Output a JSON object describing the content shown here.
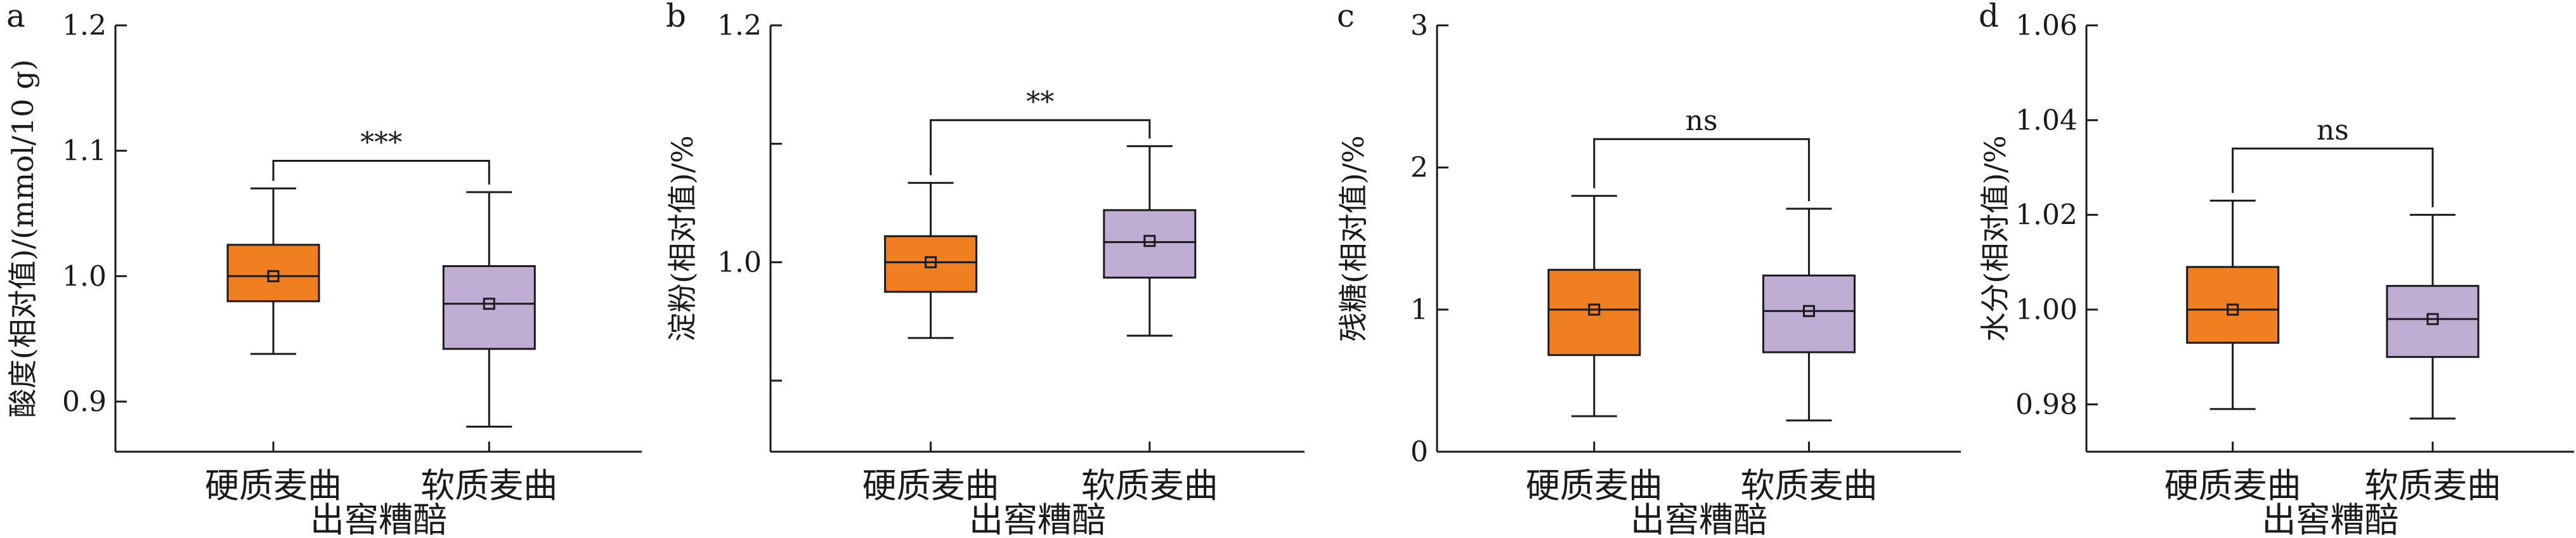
{
  "colors": {
    "hard": "#F07F22",
    "soft": "#BFADD4",
    "line": "#1a1a1a"
  },
  "chart_data": [
    {
      "type": "box",
      "panel": "a",
      "ylabel": "酸度(相对值)/(mmol/10 g)",
      "xlabel": "出窖糟醅",
      "categories": [
        "硬质麦曲",
        "软质麦曲"
      ],
      "ylim": [
        0.86,
        1.2
      ],
      "yticks": [
        0.9,
        1.0,
        1.1,
        1.2
      ],
      "ytick_labels": [
        "0.9",
        "1.0",
        "1.1",
        "1.2"
      ],
      "boxes": [
        {
          "min": 0.938,
          "q1": 0.98,
          "median": 1.0,
          "q3": 1.025,
          "max": 1.07,
          "mean": 1.0
        },
        {
          "min": 0.88,
          "q1": 0.942,
          "median": 0.978,
          "q3": 1.008,
          "max": 1.067,
          "mean": 0.978
        }
      ],
      "significance": {
        "label": "***",
        "y": 1.092
      }
    },
    {
      "type": "box",
      "panel": "b",
      "ylabel": "淀粉(相对值)/%",
      "xlabel": "出窖糟醅",
      "categories": [
        "硬质麦曲",
        "软质麦曲"
      ],
      "ylim": [
        0.84,
        1.2
      ],
      "yticks": [
        0.9,
        1.0,
        1.1,
        1.2
      ],
      "ytick_labels": [
        "",
        "1.0",
        "",
        "1.2"
      ],
      "boxes": [
        {
          "min": 0.936,
          "q1": 0.975,
          "median": 1.0,
          "q3": 1.022,
          "max": 1.067,
          "mean": 1.0
        },
        {
          "min": 0.938,
          "q1": 0.987,
          "median": 1.017,
          "q3": 1.044,
          "max": 1.098,
          "mean": 1.018
        }
      ],
      "significance": {
        "label": "**",
        "y": 1.12
      }
    },
    {
      "type": "box",
      "panel": "c",
      "ylabel": "残糖(相对值)/%",
      "xlabel": "出窖糟醅",
      "categories": [
        "硬质麦曲",
        "软质麦曲"
      ],
      "ylim": [
        0,
        3
      ],
      "yticks": [
        0,
        1,
        2,
        3
      ],
      "ytick_labels": [
        "0",
        "1",
        "2",
        "3"
      ],
      "boxes": [
        {
          "min": 0.25,
          "q1": 0.68,
          "median": 1.0,
          "q3": 1.28,
          "max": 1.8,
          "mean": 1.0
        },
        {
          "min": 0.22,
          "q1": 0.7,
          "median": 0.99,
          "q3": 1.24,
          "max": 1.71,
          "mean": 0.99
        }
      ],
      "significance": {
        "label": "ns",
        "y": 2.2
      }
    },
    {
      "type": "box",
      "panel": "d",
      "ylabel": "水分(相对值)/%",
      "xlabel": "出窖糟醅",
      "categories": [
        "硬质麦曲",
        "软质麦曲"
      ],
      "ylim": [
        0.97,
        1.06
      ],
      "yticks": [
        0.98,
        1.0,
        1.02,
        1.04,
        1.06
      ],
      "ytick_labels": [
        "0.98",
        "1.00",
        "1.02",
        "1.04",
        "1.06"
      ],
      "boxes": [
        {
          "min": 0.979,
          "q1": 0.993,
          "median": 1.0,
          "q3": 1.009,
          "max": 1.023,
          "mean": 1.0
        },
        {
          "min": 0.977,
          "q1": 0.99,
          "median": 0.998,
          "q3": 1.005,
          "max": 1.02,
          "mean": 0.998
        }
      ],
      "significance": {
        "label": "ns",
        "y": 1.034
      }
    }
  ]
}
